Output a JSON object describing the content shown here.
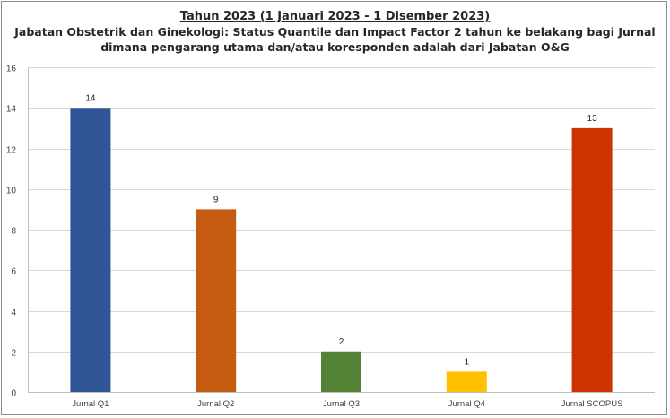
{
  "chart_data": {
    "type": "bar",
    "title": "Tahun 2023 (1 Januari 2023 - 1 Disember 2023)",
    "subtitle": [
      "Jabatan Obstetrik dan Ginekologi: Status Quantile dan Impact Factor 2 tahun ke belakang bagi Jurnal",
      "dimana pengarang utama dan/atau koresponden adalah dari Jabatan O&G"
    ],
    "categories": [
      "Jurnal Q1",
      "Jurnal Q2",
      "Jurnal Q3",
      "Jurnal Q4",
      "Jurnal SCOPUS"
    ],
    "values": [
      14,
      9,
      2,
      1,
      13
    ],
    "colors": [
      "#2f5597",
      "#c55a11",
      "#548235",
      "#ffc000",
      "#cc3300"
    ],
    "data_labels": [
      "14",
      "9",
      "2",
      "1",
      "13"
    ],
    "ylim": [
      0,
      16
    ],
    "yticks": [
      "0",
      "2",
      "4",
      "6",
      "8",
      "10",
      "12",
      "14",
      "16"
    ],
    "xlabel": "",
    "ylabel": "",
    "grid": true,
    "legend": "none"
  }
}
